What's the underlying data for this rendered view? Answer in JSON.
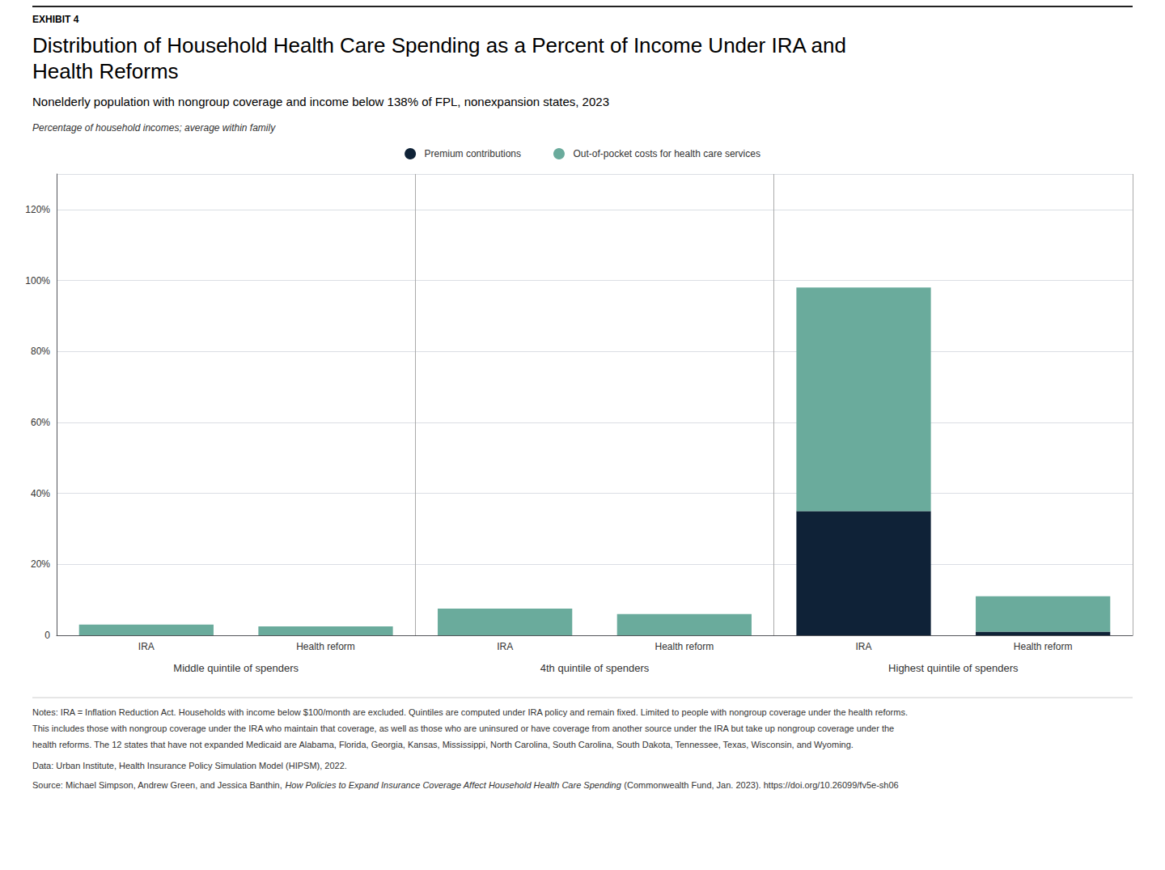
{
  "chart_data": {
    "type": "bar",
    "stacked": true,
    "exhibit": "EXHIBIT 4",
    "title": "Distribution of Household Health Care Spending as a Percent of Income Under IRA and\nHealth Reforms",
    "subtitle": "Nonelderly population with nongroup coverage and income below 138% of FPL, nonexpansion states, 2023",
    "y_label": "Percentage of household incomes; average within family",
    "categories": [
      "IRA",
      "Health reform",
      "IRA",
      "Health reform",
      "IRA",
      "Health reform"
    ],
    "groups": [
      "Middle quintile of spenders",
      "4th quintile of spenders",
      "Highest quintile of spenders"
    ],
    "series": [
      {
        "name": "Premium contributions",
        "color": "#0f2237",
        "values": [
          0.0,
          0.0,
          0.0,
          0.0,
          35.0,
          1.0
        ]
      },
      {
        "name": "Out-of-pocket costs for health care services",
        "color": "#6aab9c",
        "values": [
          3.0,
          2.5,
          7.5,
          6.0,
          63.0,
          10.0
        ]
      }
    ],
    "ylim": [
      0,
      130
    ],
    "yticks": [
      0,
      {
        "value": 20,
        "label": "20%"
      },
      {
        "value": 40,
        "label": "40%"
      },
      {
        "value": 60,
        "label": "60%"
      },
      {
        "value": 80,
        "label": "80%"
      },
      {
        "value": 100,
        "label": "100%"
      },
      {
        "value": 120,
        "label": "120%"
      }
    ],
    "grid": true,
    "legend": "top",
    "notes": [
      "Notes: IRA = Inflation Reduction Act. Households with income below $100/month are excluded. Quintiles are computed under IRA policy and remain fixed. Limited to people with nongroup coverage under the health reforms.",
      "This includes those with nongroup coverage under the IRA who maintain that coverage, as well as those who are uninsured or have coverage from another source under the IRA but take up nongroup coverage under the",
      "health reforms. The 12 states that have not expanded Medicaid are Alabama, Florida, Georgia, Kansas, Mississippi, North Carolina, South Carolina, South Dakota, Tennessee, Texas, Wisconsin, and Wyoming."
    ],
    "data_note": "Data: Urban Institute, Health Insurance Policy Simulation Model (HIPSM), 2022.",
    "source": [
      {
        "text": "Source: Michael Simpson, Andrew Green, and Jessica Banthin, ",
        "style": "normal"
      },
      {
        "text": "How Policies to Expand Insurance Coverage Affect Household Health Care Spending",
        "style": "italic"
      },
      {
        "text": " (Commonwealth Fund, Jan. 2023). ",
        "style": "normal"
      },
      {
        "text": "https://doi.org/10.26099/fv5e-sh06",
        "style": "normal"
      }
    ]
  }
}
